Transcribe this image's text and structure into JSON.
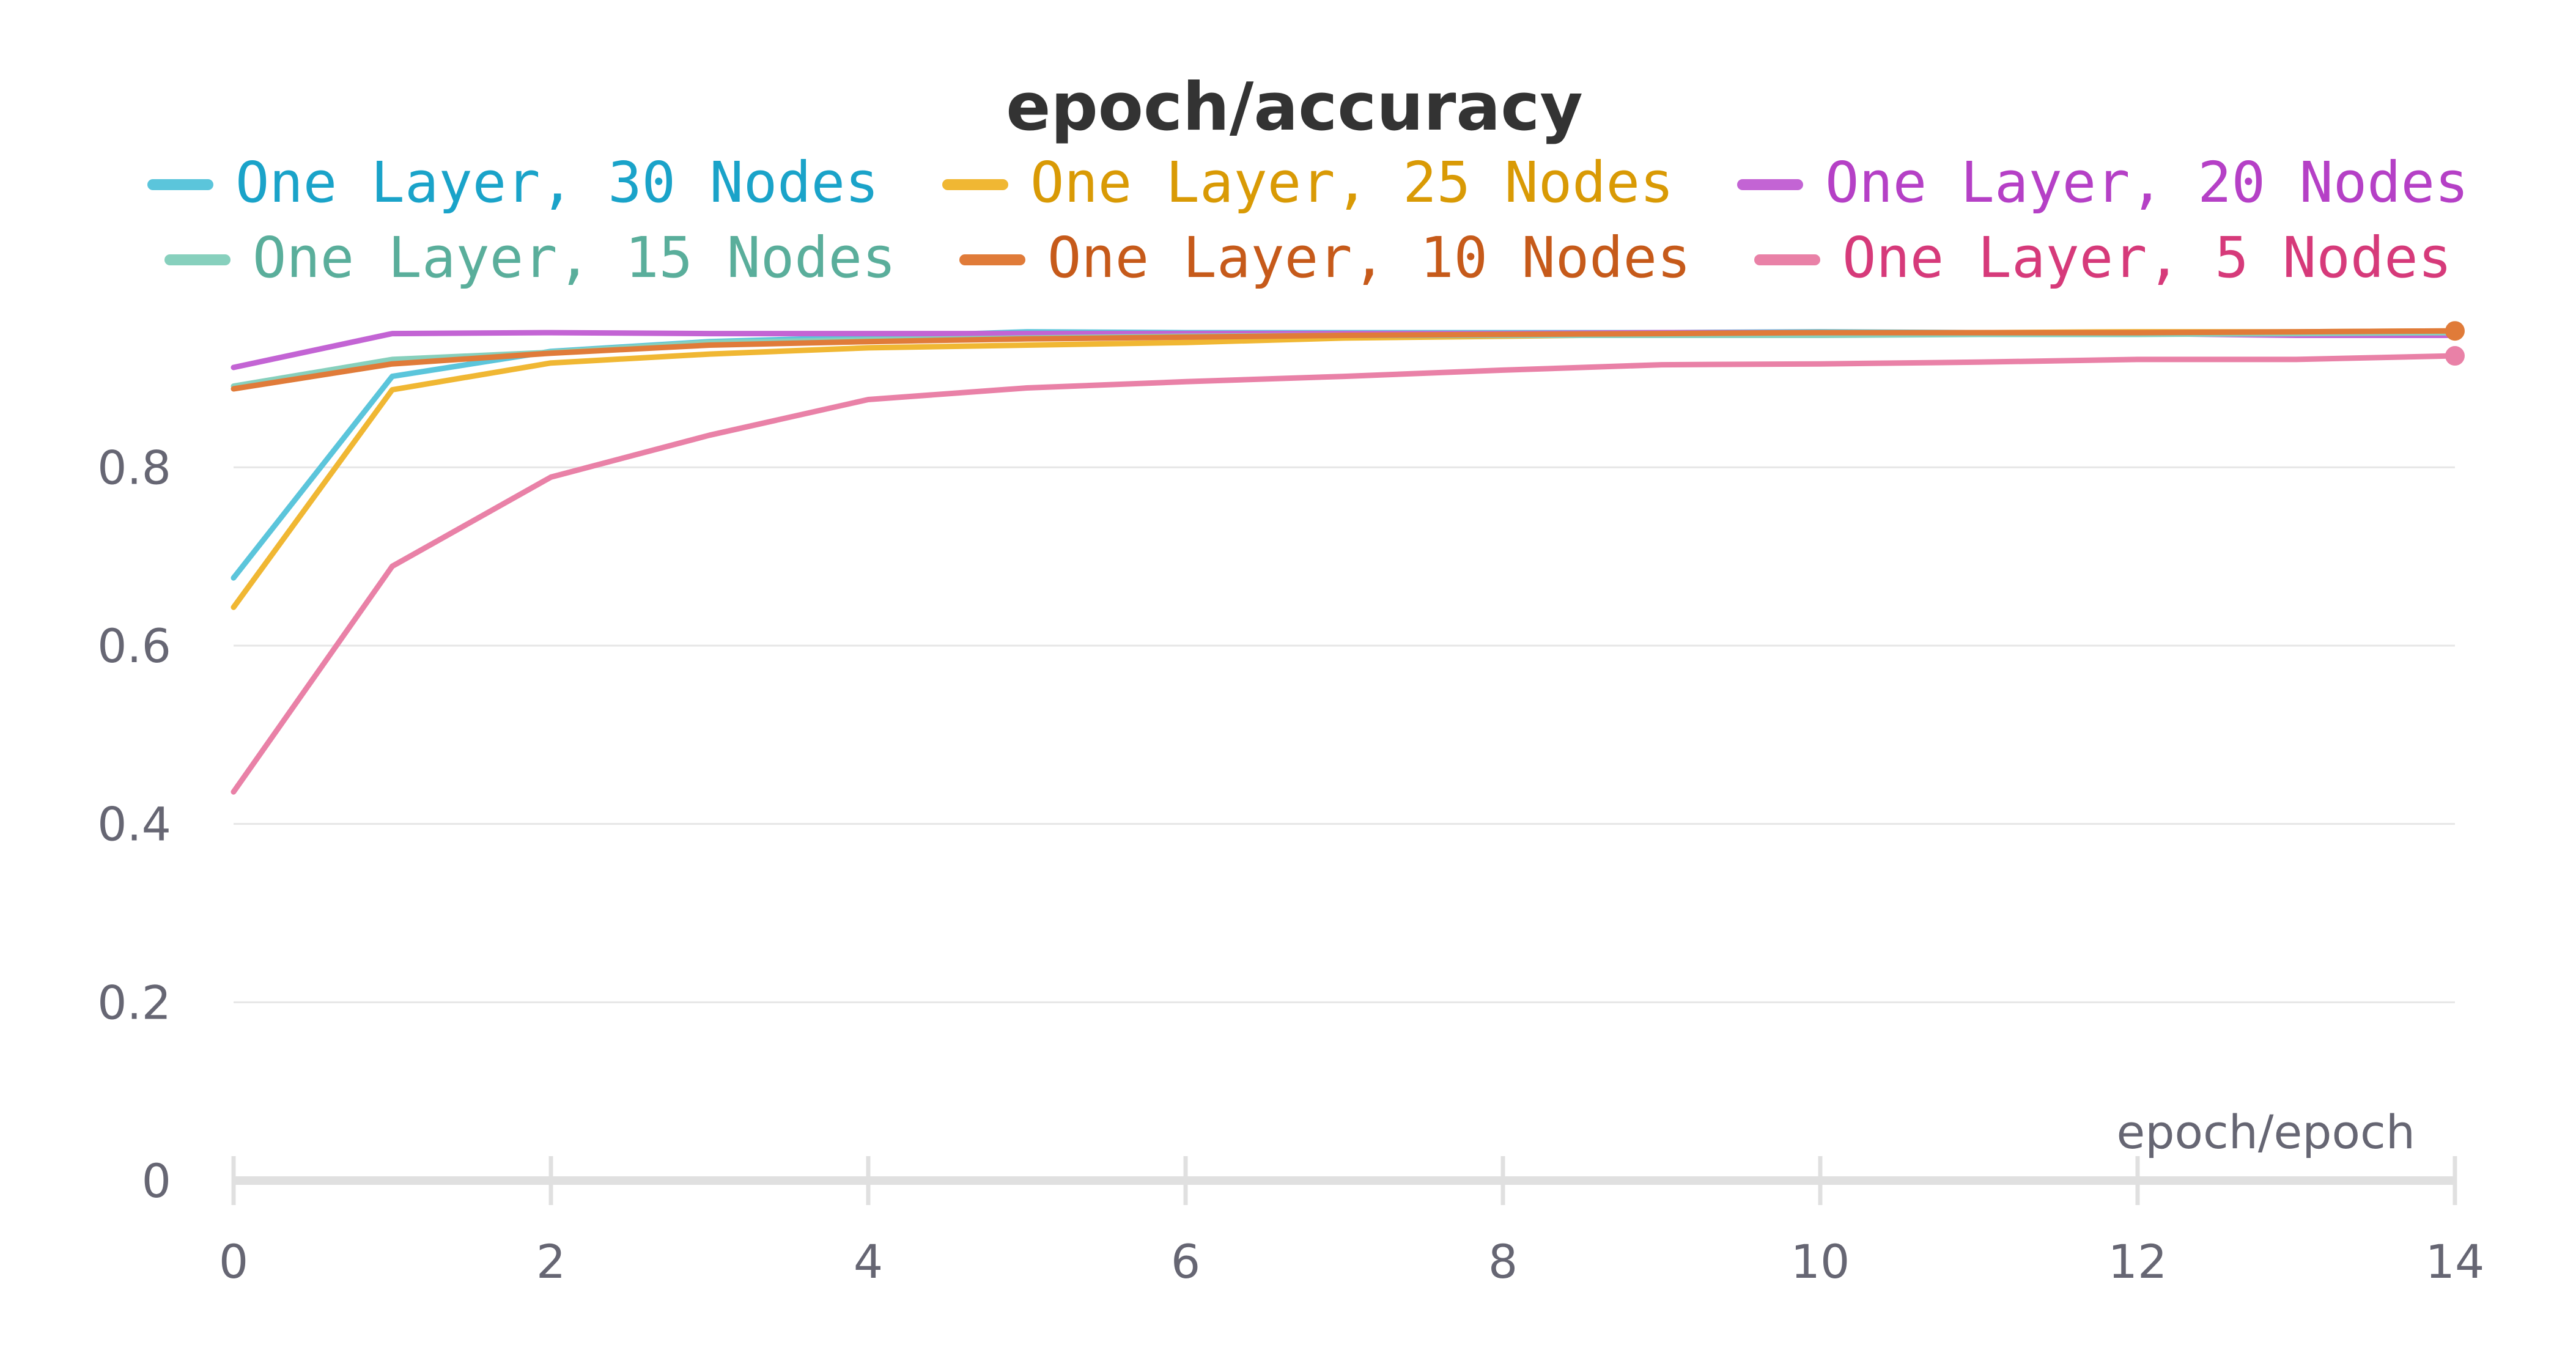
{
  "chart_data": {
    "type": "line",
    "title": "epoch/accuracy",
    "xlabel": "epoch/epoch",
    "ylabel": "",
    "xlim": [
      0,
      14
    ],
    "ylim": [
      0,
      0.96
    ],
    "x_ticks": [
      "0",
      "2",
      "4",
      "6",
      "8",
      "10",
      "12",
      "14"
    ],
    "y_ticks": [
      "0",
      "0.2",
      "0.4",
      "0.6",
      "0.8"
    ],
    "grid": true,
    "legend_position": "top",
    "x": [
      0,
      1,
      2,
      3,
      4,
      5,
      6,
      7,
      8,
      9,
      10,
      11,
      12,
      13,
      14
    ],
    "series": [
      {
        "name": "One Layer, 30 Nodes",
        "color": "#5bc5db",
        "text_color": "#1aa3c9",
        "values": [
          0.676,
          0.902,
          0.93,
          0.941,
          0.946,
          0.952,
          0.951,
          0.951,
          0.951,
          0.951,
          0.952,
          0.951,
          0.95,
          0.951,
          0.951
        ]
      },
      {
        "name": "One Layer, 25 Nodes",
        "color": "#f0b733",
        "text_color": "#d99a05",
        "values": [
          0.643,
          0.887,
          0.917,
          0.927,
          0.934,
          0.937,
          0.94,
          0.945,
          0.947,
          0.949,
          0.95,
          0.951,
          0.952,
          0.952,
          0.953
        ]
      },
      {
        "name": "One Layer, 20 Nodes",
        "color": "#c364d4",
        "text_color": "#b540c6",
        "values": [
          0.912,
          0.95,
          0.951,
          0.95,
          0.95,
          0.95,
          0.95,
          0.95,
          0.95,
          0.951,
          0.951,
          0.95,
          0.95,
          0.948,
          0.948
        ]
      },
      {
        "name": "One Layer, 15 Nodes",
        "color": "#87d0bd",
        "text_color": "#5aae9b",
        "values": [
          0.891,
          0.921,
          0.929,
          0.94,
          0.943,
          0.945,
          0.947,
          0.948,
          0.948,
          0.948,
          0.948,
          0.949,
          0.949,
          0.95,
          0.951
        ]
      },
      {
        "name": "One Layer, 10 Nodes",
        "color": "#e07b39",
        "text_color": "#c65a1a",
        "values": [
          0.888,
          0.916,
          0.928,
          0.937,
          0.941,
          0.944,
          0.946,
          0.948,
          0.949,
          0.95,
          0.951,
          0.951,
          0.951,
          0.952,
          0.953
        ]
      },
      {
        "name": "One Layer, 5 Nodes",
        "color": "#e981a7",
        "text_color": "#d63a7a",
        "values": [
          0.436,
          0.689,
          0.789,
          0.836,
          0.876,
          0.889,
          0.896,
          0.902,
          0.909,
          0.915,
          0.916,
          0.918,
          0.921,
          0.921,
          0.925
        ]
      }
    ]
  }
}
